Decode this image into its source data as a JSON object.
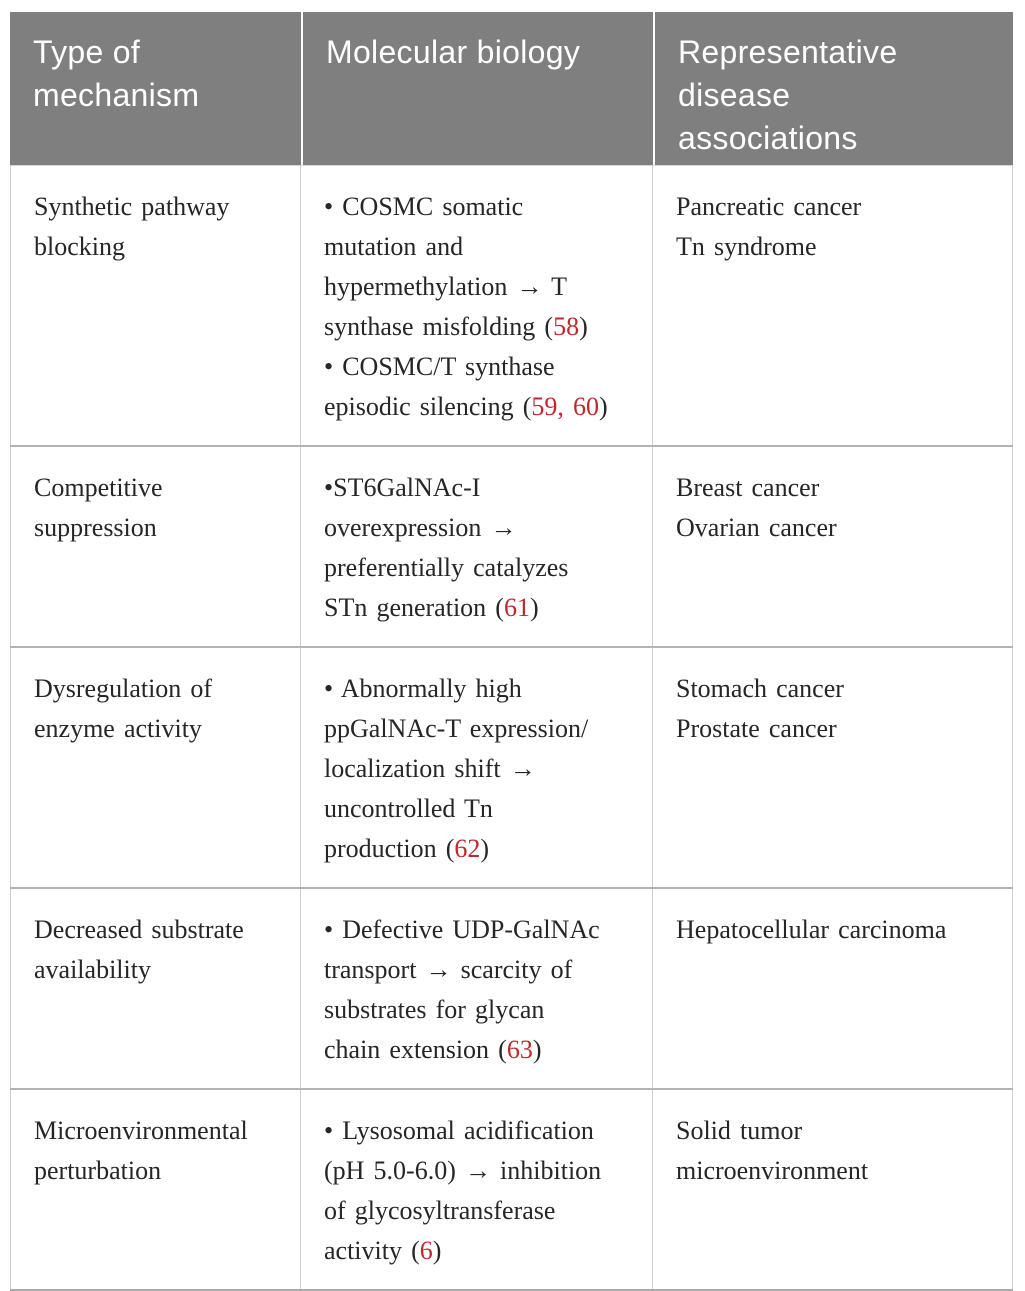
{
  "colors": {
    "header_background": "#7f7f7f",
    "header_text": "#ffffff",
    "body_text": "#262626",
    "citation_red": "#c1272d",
    "grid_line": "#cfcfcf"
  },
  "table": {
    "headers": [
      {
        "label": "Type of\nmechanism"
      },
      {
        "label": "Molecular biology"
      },
      {
        "label": "Representative\ndisease\nassociations"
      }
    ],
    "rows": [
      {
        "mechanism": "Synthetic pathway\nblocking",
        "molecular_biology": [
          {
            "t": "• COSMC somatic\nmutation and\nhypermethylation → T\nsynthase misfolding ("
          },
          {
            "t": "58",
            "red": true
          },
          {
            "t": ")\n• COSMC/T synthase\nepisodic silencing ("
          },
          {
            "t": "59, 60",
            "red": true
          },
          {
            "t": ")"
          }
        ],
        "diseases": "Pancreatic cancer\nTn syndrome"
      },
      {
        "mechanism": "Competitive\nsuppression",
        "molecular_biology": [
          {
            "t": "•ST6GalNAc-I\noverexpression →\npreferentially catalyzes\nSTn generation ("
          },
          {
            "t": "61",
            "red": true
          },
          {
            "t": ")"
          }
        ],
        "diseases": "Breast cancer\nOvarian cancer"
      },
      {
        "mechanism": "Dysregulation of\nenzyme activity",
        "molecular_biology": [
          {
            "t": "• Abnormally high\nppGalNAc-T expression/\nlocalization shift →\nuncontrolled Tn\nproduction ("
          },
          {
            "t": "62",
            "red": true
          },
          {
            "t": ")"
          }
        ],
        "diseases": "Stomach cancer\nProstate cancer"
      },
      {
        "mechanism": "Decreased substrate\navailability",
        "molecular_biology": [
          {
            "t": "• Defective UDP-GalNAc\ntransport → scarcity of\nsubstrates for glycan\nchain extension ("
          },
          {
            "t": "63",
            "red": true
          },
          {
            "t": ")"
          }
        ],
        "diseases": "Hepatocellular carcinoma"
      },
      {
        "mechanism": "Microenvironmental\nperturbation",
        "molecular_biology": [
          {
            "t": "• Lysosomal acidification\n(pH 5.0-6.0) → inhibition\nof glycosyltransferase\nactivity ("
          },
          {
            "t": "6",
            "red": true
          },
          {
            "t": ")"
          }
        ],
        "diseases": "Solid tumor\nmicroenvironment"
      }
    ]
  }
}
